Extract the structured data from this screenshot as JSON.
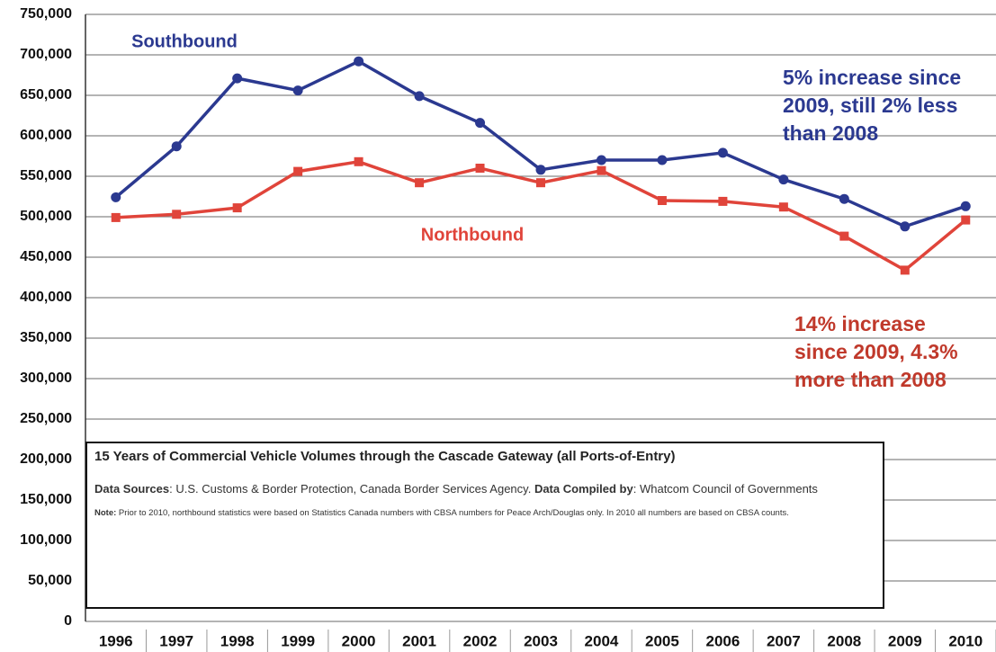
{
  "chart_data": {
    "type": "line",
    "categories": [
      "1996",
      "1997",
      "1998",
      "1999",
      "2000",
      "2001",
      "2002",
      "2003",
      "2004",
      "2005",
      "2006",
      "2007",
      "2008",
      "2009",
      "2010"
    ],
    "series": [
      {
        "name": "Southbound",
        "color": "#2b3990",
        "marker": "circle",
        "values": [
          524000,
          587000,
          671000,
          656000,
          692000,
          649000,
          616000,
          558000,
          570000,
          570000,
          579000,
          546000,
          522000,
          488000,
          513000
        ]
      },
      {
        "name": "Northbound",
        "color": "#e0443a",
        "marker": "square",
        "values": [
          499000,
          503000,
          511000,
          556000,
          568000,
          542000,
          560000,
          542000,
          557000,
          520000,
          519000,
          512000,
          476000,
          434000,
          496000
        ]
      }
    ],
    "ylim": [
      0,
      750000
    ],
    "yticks": [
      0,
      {
        "value": 50000,
        "label": "50,000"
      },
      {
        "value": 100000,
        "label": "100,000"
      },
      {
        "value": 150000,
        "label": "150,000"
      },
      {
        "value": 200000,
        "label": "200,000"
      },
      {
        "value": 250000,
        "label": "250,000"
      },
      {
        "value": 300000,
        "label": "300,000"
      },
      {
        "value": 350000,
        "label": "350,000"
      },
      {
        "value": 400000,
        "label": "400,000"
      },
      {
        "value": 450000,
        "label": "450,000"
      },
      {
        "value": 500000,
        "label": "500,000"
      },
      {
        "value": 550000,
        "label": "550,000"
      },
      {
        "value": 600000,
        "label": "600,000"
      },
      {
        "value": 650000,
        "label": "650,000"
      },
      {
        "value": 700000,
        "label": "700,000"
      },
      {
        "value": 750000,
        "label": "750,000"
      }
    ],
    "grid": true,
    "annotations": [
      {
        "lines": [
          "5% increase since",
          "2009, still 2% less",
          "than 2008"
        ],
        "color": "#2b3990"
      },
      {
        "lines": [
          "14% increase",
          "since  2009, 4.3%",
          "more than 2008"
        ],
        "color": "#c0392b"
      }
    ],
    "box": {
      "title": "15 Years of Commercial Vehicle Volumes through the Cascade Gateway (all Ports-of-Entry)",
      "sources_label": "Data Sources",
      "sources": ": U.S. Customs & Border Protection, Canada Border Services Agency. ",
      "compiled_label": "Data Compiled by",
      "compiled": ": Whatcom Council of Governments",
      "note_label": "Note:",
      "note": " Prior to 2010, northbound statistics were based on Statistics Canada numbers with CBSA numbers for Peace Arch/Douglas only. In 2010 all numbers are based on CBSA counts."
    }
  }
}
